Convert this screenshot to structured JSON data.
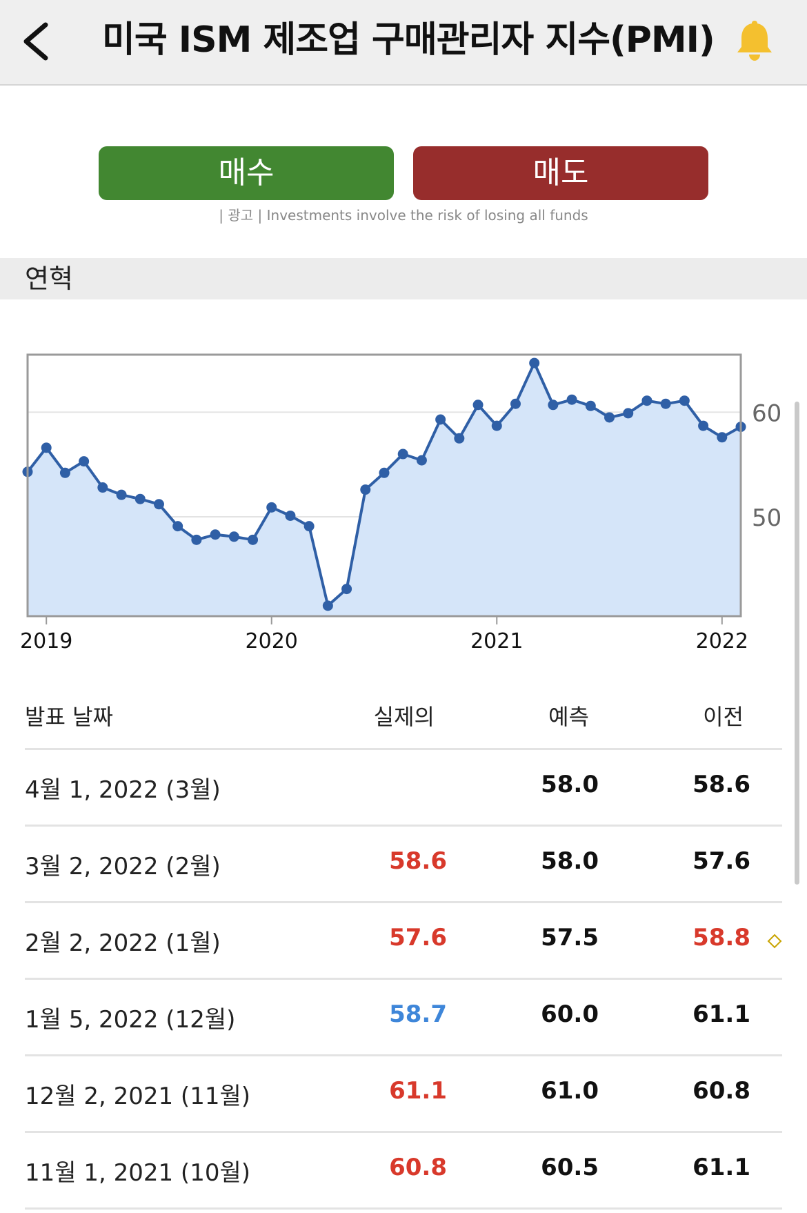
{
  "header": {
    "title": "미국 ISM 제조업 구매관리자 지수(PMI)",
    "back_icon": "chevron-left-icon",
    "alert_icon": "bell-icon"
  },
  "actions": {
    "buy_label": "매수",
    "sell_label": "매도",
    "ad_note": "| 광고 | Investments involve the risk of losing all funds"
  },
  "section": {
    "title": "연혁"
  },
  "colors": {
    "buy": "#428731",
    "sell": "#972d2c",
    "bell": "#f4c02f",
    "line": "#2f5fa6",
    "area": "#d5e5f9",
    "up": "#d8392b",
    "down": "#3e86d9"
  },
  "chart_data": {
    "type": "area",
    "x": [
      "2018-12",
      "2019-01",
      "2019-02",
      "2019-03",
      "2019-04",
      "2019-05",
      "2019-06",
      "2019-07",
      "2019-08",
      "2019-09",
      "2019-10",
      "2019-11",
      "2019-12",
      "2020-01",
      "2020-02",
      "2020-03",
      "2020-04",
      "2020-05",
      "2020-06",
      "2020-07",
      "2020-08",
      "2020-09",
      "2020-10",
      "2020-11",
      "2020-12",
      "2021-01",
      "2021-02",
      "2021-03",
      "2021-04",
      "2021-05",
      "2021-06",
      "2021-07",
      "2021-08",
      "2021-09",
      "2021-10",
      "2021-11",
      "2021-12",
      "2022-01",
      "2022-02"
    ],
    "series": [
      {
        "values": [
          54.3,
          56.6,
          54.2,
          55.3,
          52.8,
          52.1,
          51.7,
          51.2,
          49.1,
          47.8,
          48.3,
          48.1,
          47.8,
          50.9,
          50.1,
          49.1,
          41.5,
          43.1,
          52.6,
          54.2,
          56.0,
          55.4,
          59.3,
          57.5,
          60.7,
          58.7,
          60.8,
          64.7,
          60.7,
          61.2,
          60.6,
          59.5,
          59.9,
          61.1,
          60.8,
          61.1,
          58.7,
          57.6,
          58.6
        ]
      }
    ],
    "x_ticks": [
      "2019",
      "2020",
      "2021",
      "2022"
    ],
    "y_ticks": [
      60,
      50
    ],
    "ylim": [
      40.5,
      65.5
    ],
    "grid": true,
    "y_axis_side": "right"
  },
  "table": {
    "headers": {
      "date": "발표 날짜",
      "actual": "실제의",
      "forecast": "예측",
      "previous": "이전"
    },
    "rows": [
      {
        "date": "4월 1, 2022 (3월)",
        "actual": "",
        "actual_color": "#111111",
        "forecast": "58.0",
        "previous": "58.6",
        "previous_color": "#111111",
        "revised": false
      },
      {
        "date": "3월 2, 2022 (2월)",
        "actual": "58.6",
        "actual_color": "#d8392b",
        "forecast": "58.0",
        "previous": "57.6",
        "previous_color": "#111111",
        "revised": false
      },
      {
        "date": "2월 2, 2022 (1월)",
        "actual": "57.6",
        "actual_color": "#d8392b",
        "forecast": "57.5",
        "previous": "58.8",
        "previous_color": "#d8392b",
        "revised": true
      },
      {
        "date": "1월 5, 2022 (12월)",
        "actual": "58.7",
        "actual_color": "#3e86d9",
        "forecast": "60.0",
        "previous": "61.1",
        "previous_color": "#111111",
        "revised": false
      },
      {
        "date": "12월 2, 2021 (11월)",
        "actual": "61.1",
        "actual_color": "#d8392b",
        "forecast": "61.0",
        "previous": "60.8",
        "previous_color": "#111111",
        "revised": false
      },
      {
        "date": "11월 1, 2021 (10월)",
        "actual": "60.8",
        "actual_color": "#d8392b",
        "forecast": "60.5",
        "previous": "61.1",
        "previous_color": "#111111",
        "revised": false
      }
    ]
  }
}
